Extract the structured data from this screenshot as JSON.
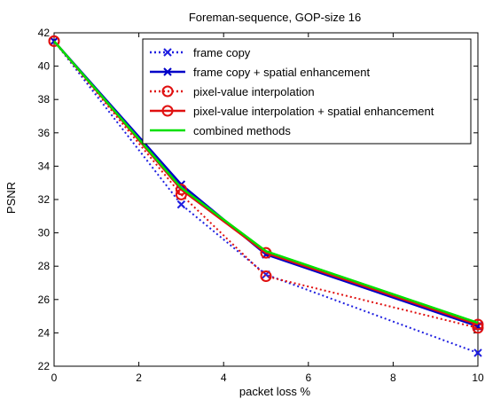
{
  "chart_data": {
    "type": "line",
    "title": "Foreman-sequence, GOP-size 16",
    "xlabel": "packet loss %",
    "ylabel": "PSNR",
    "xlim": [
      0,
      10
    ],
    "ylim": [
      22,
      42
    ],
    "xticks": [
      0,
      2,
      4,
      6,
      8,
      10
    ],
    "yticks": [
      22,
      24,
      26,
      28,
      30,
      32,
      34,
      36,
      38,
      40,
      42
    ],
    "grid": true,
    "legend_position": "top-right",
    "x": [
      0,
      3,
      5,
      10
    ],
    "series": [
      {
        "name": "frame copy",
        "values": [
          41.5,
          31.7,
          27.5,
          22.8
        ],
        "color": "#1f1fe0",
        "line": "dotted",
        "marker": "x"
      },
      {
        "name": "frame copy + spatial enhancement",
        "values": [
          41.5,
          32.9,
          28.7,
          24.4
        ],
        "color": "#0000c8",
        "line": "solid",
        "marker": "x"
      },
      {
        "name": "pixel-value interpolation",
        "values": [
          41.5,
          32.3,
          27.4,
          24.3
        ],
        "color": "#e01010",
        "line": "dotted",
        "marker": "circle"
      },
      {
        "name": "pixel-value interpolation + spatial enhancement",
        "values": [
          41.5,
          32.6,
          28.8,
          24.5
        ],
        "color": "#e01010",
        "line": "solid",
        "marker": "circle"
      },
      {
        "name": "combined methods",
        "values": [
          41.5,
          32.7,
          28.9,
          24.6
        ],
        "color": "#00e000",
        "line": "solid",
        "marker": "none"
      }
    ]
  }
}
